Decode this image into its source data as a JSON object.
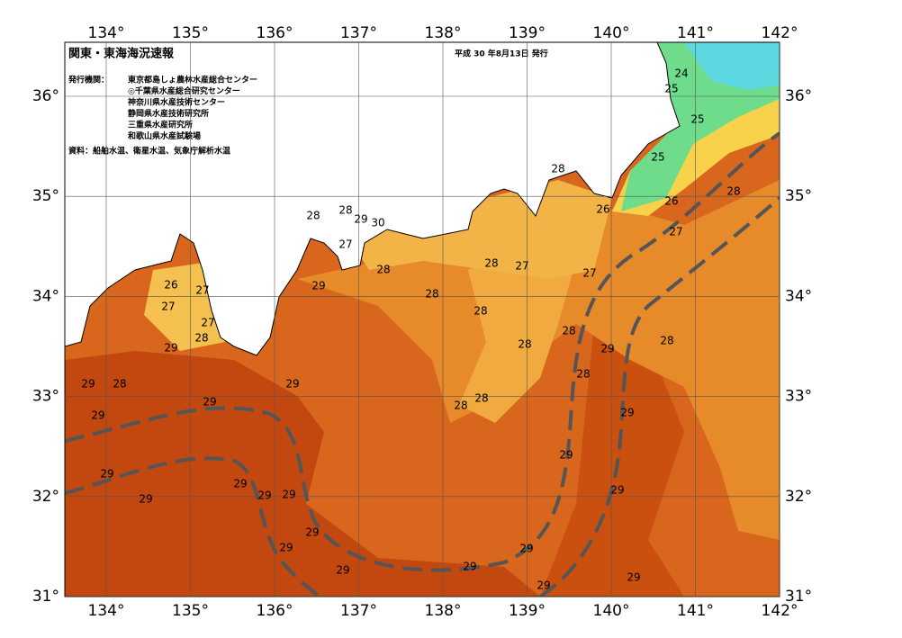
{
  "header": {
    "title": "関東・東海海況速報",
    "date": "平成 30 年8月13日 発行",
    "issuers_label": "発行機関：",
    "issuers": [
      "東京都島しょ農林水産総合センター",
      "◎千葉県水産総合研究センター",
      "神奈川県水産技術センター",
      "静岡県水産技術研究所",
      "三重県水産研究所",
      "和歌山県水産試験場"
    ],
    "source": "資料：船舶水温、衛星水温、気象庁解析水温"
  },
  "map": {
    "lon_labels": [
      "134°",
      "135°",
      "136°",
      "137°",
      "138°",
      "139°",
      "140°",
      "141°",
      "142°"
    ],
    "lat_labels": [
      "36°",
      "35°",
      "34°",
      "33°",
      "32°",
      "31°"
    ],
    "contour_labels": [
      24,
      25,
      25,
      25,
      28,
      28,
      26,
      26,
      27,
      28,
      28,
      29,
      30,
      27,
      28,
      28,
      27,
      27,
      29,
      26,
      27,
      28,
      28,
      27,
      27,
      28,
      28,
      29,
      28,
      29,
      28,
      28,
      29,
      28,
      29,
      28,
      29,
      28,
      29,
      29,
      29,
      29,
      29,
      29,
      29,
      29,
      29,
      29,
      29,
      29,
      29,
      29,
      29,
      29
    ]
  }
}
